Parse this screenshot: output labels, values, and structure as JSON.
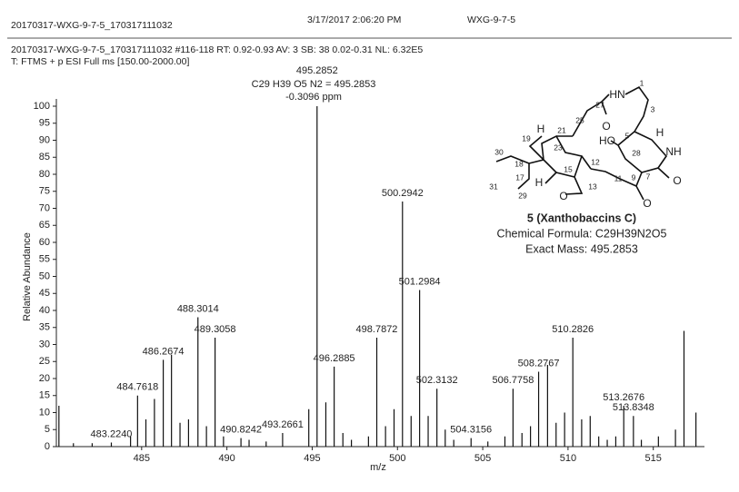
{
  "header": {
    "file": "20170317-WXG-9-7-5_170317111032",
    "datetime": "3/17/2017 2:06:20 PM",
    "sample": "WXG-9-7-5",
    "scan": "20170317-WXG-9-7-5_170317111032 #116-118  RT: 0.92-0.93  AV: 3  SB: 38  0.02-0.31  NL: 6.32E5",
    "filter": "T: FTMS + p ESI Full ms [150.00-2000.00]"
  },
  "chart_data": {
    "type": "spectrum",
    "x_label": "m/z",
    "y_label": "Relative Abundance",
    "color": "#111111",
    "xlim": [
      480,
      518
    ],
    "xticks": [
      485,
      490,
      495,
      500,
      505,
      510,
      515
    ],
    "ylim": [
      0,
      100
    ],
    "yticks": [
      0,
      5,
      10,
      15,
      20,
      25,
      30,
      35,
      40,
      45,
      50,
      55,
      60,
      65,
      70,
      75,
      80,
      85,
      90,
      95,
      100
    ],
    "x": [
      480.15,
      481.0,
      482.1,
      483.224,
      484.35,
      484.7618,
      485.25,
      485.75,
      486.2674,
      486.75,
      487.25,
      487.75,
      488.3014,
      488.8,
      489.3058,
      489.8,
      490.8242,
      491.3,
      492.3,
      493.2661,
      494.8,
      495.2852,
      495.8,
      496.2885,
      496.8,
      497.3,
      498.3,
      498.7872,
      499.3,
      499.8,
      500.2942,
      500.8,
      501.2984,
      501.8,
      502.3132,
      502.8,
      503.3,
      504.3156,
      505.3,
      506.3,
      506.7758,
      507.3,
      507.8,
      508.2767,
      508.8,
      509.3,
      509.8,
      510.2826,
      510.8,
      511.3,
      511.8,
      512.3,
      512.8,
      513.2676,
      513.8348,
      514.3,
      515.3,
      516.3,
      516.8,
      517.5
    ],
    "values": [
      12,
      1,
      1,
      1.2,
      3,
      15,
      8,
      14,
      25.5,
      27,
      7,
      8,
      38,
      6,
      32,
      3,
      2.5,
      2,
      1.5,
      4,
      11,
      100,
      13,
      23.5,
      4,
      2,
      3,
      32,
      6,
      11,
      72,
      9,
      46,
      9,
      17,
      5,
      2,
      2.5,
      1.5,
      3,
      17,
      4,
      6,
      22,
      24,
      7,
      10,
      32,
      8,
      9,
      3,
      2,
      3,
      12,
      9,
      2,
      3,
      5,
      34,
      10
    ],
    "peak_labels": [
      null,
      null,
      null,
      "483.2240",
      null,
      "484.7618",
      null,
      null,
      "486.2674",
      null,
      null,
      null,
      "488.3014",
      null,
      "489.3058",
      null,
      "490.8242",
      null,
      null,
      "493.2661",
      null,
      "495.2852",
      null,
      "496.2885",
      null,
      null,
      null,
      "498.7872",
      null,
      null,
      "500.2942",
      null,
      "501.2984",
      null,
      "502.3132",
      null,
      null,
      "504.3156",
      null,
      null,
      "506.7758",
      null,
      null,
      "508.2767",
      null,
      null,
      null,
      "510.2826",
      null,
      null,
      null,
      null,
      null,
      "513.2676",
      "513.8348",
      null,
      null,
      null,
      null,
      null
    ],
    "annotations": [
      "C29 H39 O5 N2 = 495.2853",
      "-0.3096 ppm"
    ]
  },
  "compound": {
    "name": "5 (Xanthobaccins C)",
    "formula": "Chemical Formula: C29H39N2O5",
    "mass": "Exact Mass: 495.2853",
    "labels": [
      "1",
      "HN",
      "3",
      "5",
      "H",
      "NH",
      "HO",
      "28",
      "7",
      "O",
      "27",
      "25",
      "O",
      "9",
      "O",
      "11",
      "12",
      "23",
      "21",
      "19",
      "H",
      "30",
      "18",
      "17",
      "15",
      "13",
      "O",
      "H",
      "29",
      "31"
    ]
  }
}
